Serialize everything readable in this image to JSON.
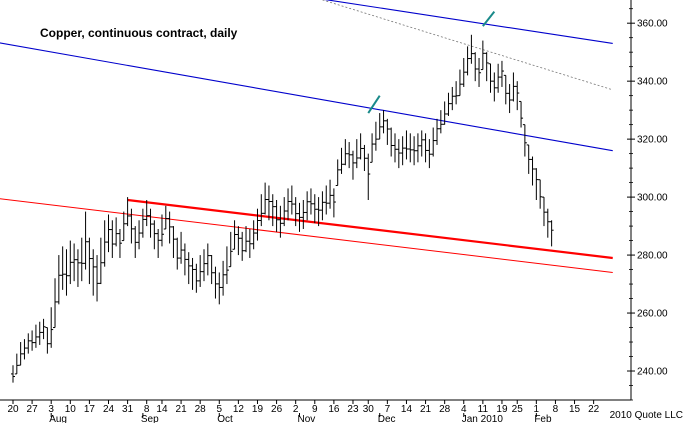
{
  "chart_data": {
    "type": "ohlc",
    "title": "Copper, continuous contract, daily",
    "credit": "2010 Quote LLC",
    "y_axis": {
      "position": "right",
      "ylim": [
        230,
        368
      ],
      "ticks": [
        240,
        260,
        280,
        300,
        320,
        340,
        360
      ],
      "tick_labels": [
        "240.00",
        "260.00",
        "280.00",
        "300.00",
        "320.00",
        "340.00",
        "360.00"
      ]
    },
    "x_axis": {
      "day_ticks": [
        {
          "label": "20",
          "i": 0
        },
        {
          "label": "27",
          "i": 5
        },
        {
          "label": "3",
          "i": 10
        },
        {
          "label": "10",
          "i": 15
        },
        {
          "label": "17",
          "i": 20
        },
        {
          "label": "24",
          "i": 25
        },
        {
          "label": "31",
          "i": 30
        },
        {
          "label": "8",
          "i": 35
        },
        {
          "label": "14",
          "i": 39
        },
        {
          "label": "21",
          "i": 44
        },
        {
          "label": "28",
          "i": 49
        },
        {
          "label": "5",
          "i": 54
        },
        {
          "label": "12",
          "i": 59
        },
        {
          "label": "19",
          "i": 64
        },
        {
          "label": "26",
          "i": 69
        },
        {
          "label": "2",
          "i": 74
        },
        {
          "label": "9",
          "i": 79
        },
        {
          "label": "16",
          "i": 84
        },
        {
          "label": "23",
          "i": 89
        },
        {
          "label": "30",
          "i": 93
        },
        {
          "label": "7",
          "i": 98
        },
        {
          "label": "14",
          "i": 103
        },
        {
          "label": "21",
          "i": 108
        },
        {
          "label": "28",
          "i": 113
        },
        {
          "label": "4",
          "i": 118
        },
        {
          "label": "11",
          "i": 123
        },
        {
          "label": "19",
          "i": 128
        },
        {
          "label": "25",
          "i": 132
        },
        {
          "label": "1",
          "i": 137
        },
        {
          "label": "8",
          "i": 142
        },
        {
          "label": "15",
          "i": 147
        },
        {
          "label": "22",
          "i": 152
        }
      ],
      "month_labels": [
        {
          "label": "Aug",
          "i": 10
        },
        {
          "label": "Sep",
          "i": 34
        },
        {
          "label": "Oct",
          "i": 54
        },
        {
          "label": "Nov",
          "i": 75
        },
        {
          "label": "Dec",
          "i": 96
        },
        {
          "label": "Jan 2010",
          "i": 118
        },
        {
          "label": "Feb",
          "i": 137
        }
      ]
    },
    "bars_hl": [
      [
        236,
        242
      ],
      [
        239,
        246
      ],
      [
        242,
        250
      ],
      [
        244,
        251
      ],
      [
        246,
        253
      ],
      [
        247,
        254
      ],
      [
        248,
        256
      ],
      [
        249,
        257
      ],
      [
        251,
        258
      ],
      [
        246,
        255
      ],
      [
        248,
        262
      ],
      [
        255,
        272
      ],
      [
        263,
        280
      ],
      [
        268,
        283
      ],
      [
        266,
        282
      ],
      [
        270,
        285
      ],
      [
        271,
        284
      ],
      [
        269,
        282
      ],
      [
        271,
        286
      ],
      [
        275,
        295
      ],
      [
        270,
        286
      ],
      [
        266,
        282
      ],
      [
        264,
        280
      ],
      [
        270,
        286
      ],
      [
        276,
        292
      ],
      [
        281,
        294
      ],
      [
        279,
        292
      ],
      [
        283,
        293
      ],
      [
        279,
        289
      ],
      [
        285,
        295
      ],
      [
        290,
        300
      ],
      [
        284,
        296
      ],
      [
        279,
        290
      ],
      [
        282,
        292
      ],
      [
        286,
        296
      ],
      [
        290,
        299
      ],
      [
        286,
        296
      ],
      [
        282,
        292
      ],
      [
        279,
        289
      ],
      [
        283,
        294
      ],
      [
        289,
        297
      ],
      [
        284,
        295
      ],
      [
        279,
        290
      ],
      [
        275,
        286
      ],
      [
        277,
        288
      ],
      [
        273,
        284
      ],
      [
        270,
        281
      ],
      [
        268,
        279
      ],
      [
        267,
        277
      ],
      [
        269,
        280
      ],
      [
        271,
        282
      ],
      [
        273,
        284
      ],
      [
        270,
        280
      ],
      [
        265,
        276
      ],
      [
        263,
        274
      ],
      [
        266,
        278
      ],
      [
        270,
        283
      ],
      [
        276,
        288
      ],
      [
        282,
        292
      ],
      [
        280,
        290
      ],
      [
        278,
        288
      ],
      [
        281,
        290
      ],
      [
        279,
        289
      ],
      [
        282,
        292
      ],
      [
        285,
        296
      ],
      [
        290,
        301
      ],
      [
        294,
        305
      ],
      [
        292,
        304
      ],
      [
        290,
        301
      ],
      [
        288,
        299
      ],
      [
        286,
        297
      ],
      [
        290,
        300
      ],
      [
        292,
        303
      ],
      [
        294,
        304
      ],
      [
        290,
        300
      ],
      [
        288,
        298
      ],
      [
        289,
        299
      ],
      [
        292,
        302
      ],
      [
        294,
        303
      ],
      [
        291,
        301
      ],
      [
        290,
        300
      ],
      [
        292,
        302
      ],
      [
        294,
        304
      ],
      [
        296,
        306
      ],
      [
        293,
        303
      ],
      [
        304,
        313
      ],
      [
        308,
        317
      ],
      [
        311,
        320
      ],
      [
        310,
        319
      ],
      [
        306,
        316
      ],
      [
        310,
        320
      ],
      [
        313,
        322
      ],
      [
        309,
        318
      ],
      [
        299,
        315
      ],
      [
        312,
        322
      ],
      [
        316,
        326
      ],
      [
        320,
        329
      ],
      [
        322,
        330
      ],
      [
        318,
        327
      ],
      [
        314,
        324
      ],
      [
        312,
        322
      ],
      [
        310,
        320
      ],
      [
        311,
        321
      ],
      [
        313,
        323
      ],
      [
        312,
        322
      ],
      [
        311,
        321
      ],
      [
        312,
        322
      ],
      [
        314,
        323
      ],
      [
        312,
        322
      ],
      [
        310,
        320
      ],
      [
        314,
        324
      ],
      [
        318,
        327
      ],
      [
        322,
        330
      ],
      [
        325,
        333
      ],
      [
        328,
        336
      ],
      [
        330,
        338
      ],
      [
        332,
        340
      ],
      [
        335,
        344
      ],
      [
        338,
        348
      ],
      [
        342,
        352
      ],
      [
        346,
        356
      ],
      [
        340,
        350
      ],
      [
        338,
        348
      ],
      [
        344,
        354
      ],
      [
        340,
        350
      ],
      [
        336,
        346
      ],
      [
        333,
        343
      ],
      [
        336,
        346
      ],
      [
        338,
        347
      ],
      [
        332,
        342
      ],
      [
        329,
        339
      ],
      [
        333,
        343
      ],
      [
        330,
        340
      ],
      [
        324,
        333
      ],
      [
        314,
        325
      ],
      [
        308,
        318
      ],
      [
        304,
        314
      ],
      [
        299,
        310
      ],
      [
        296,
        306
      ],
      [
        290,
        300
      ],
      [
        286,
        296
      ],
      [
        283,
        292
      ]
    ],
    "trend_lines": [
      {
        "name": "upper-channel",
        "color": "#0000cc",
        "width": 1.1,
        "from": [
          -7,
          386
        ],
        "to": [
          157,
          353
        ]
      },
      {
        "name": "lower-channel",
        "color": "#0000cc",
        "width": 1.1,
        "from": [
          -7,
          354
        ],
        "to": [
          157,
          316
        ]
      },
      {
        "name": "dashed-channel",
        "color": "#777777",
        "width": 0.8,
        "dash": "2,2",
        "from": [
          37,
          386
        ],
        "to": [
          157,
          337
        ]
      },
      {
        "name": "support-thick",
        "color": "#ff0000",
        "width": 2.2,
        "from": [
          30,
          299
        ],
        "to": [
          157,
          279
        ]
      },
      {
        "name": "support-thin",
        "color": "#ff0000",
        "width": 1,
        "from": [
          -7,
          300
        ],
        "to": [
          157,
          274
        ]
      }
    ],
    "markers": [
      {
        "name": "peak-marker-dec",
        "color": "#1a8a8a",
        "from": [
          93,
          329
        ],
        "to": [
          96,
          335
        ]
      },
      {
        "name": "peak-marker-jan",
        "color": "#1a8a8a",
        "from": [
          123,
          359
        ],
        "to": [
          126,
          364
        ]
      }
    ],
    "grid": false,
    "legend": "none"
  }
}
